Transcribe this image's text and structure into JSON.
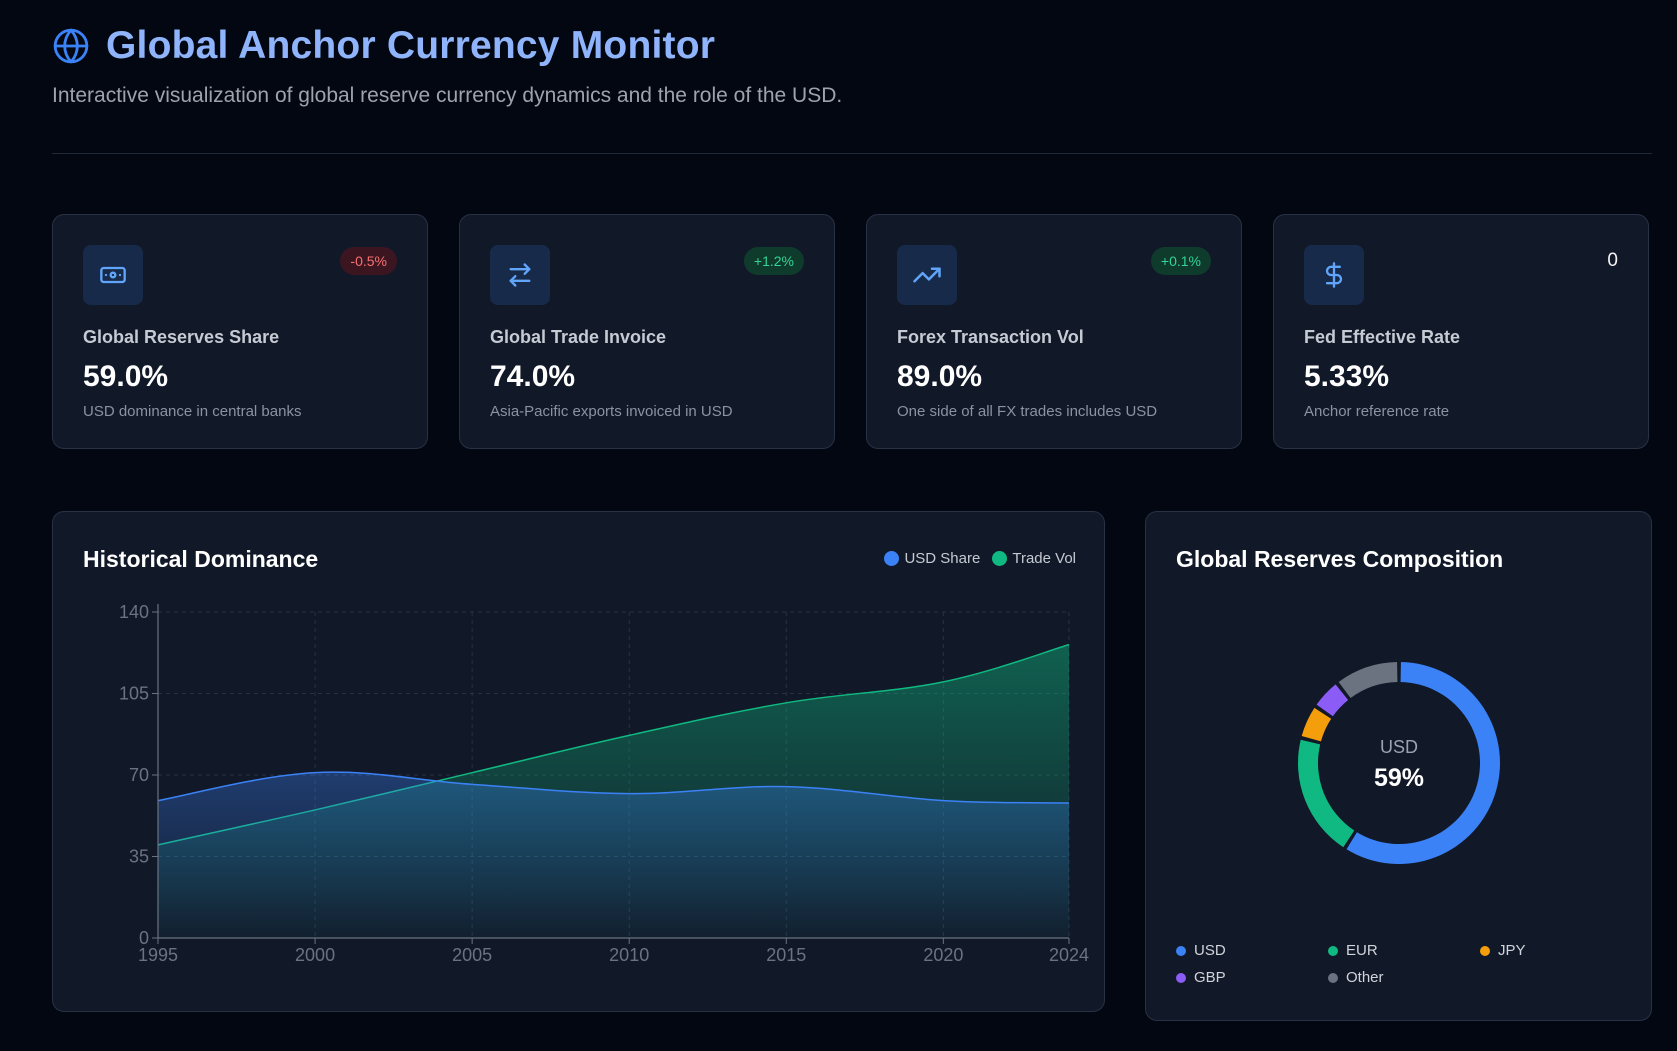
{
  "header": {
    "title": "Global Anchor Currency Monitor",
    "subtitle": "Interactive visualization of global reserve currency dynamics and the role of the USD.",
    "icon": "globe-icon"
  },
  "cards": [
    {
      "icon": "banknote-icon",
      "label": "Global Reserves Share",
      "value": "59.0%",
      "desc": "USD dominance in central banks",
      "badge": "-0.5%",
      "badge_type": "neg"
    },
    {
      "icon": "exchange-arrows-icon",
      "label": "Global Trade Invoice",
      "value": "74.0%",
      "desc": "Asia-Pacific exports invoiced in USD",
      "badge": "+1.2%",
      "badge_type": "pos"
    },
    {
      "icon": "trending-up-icon",
      "label": "Forex Transaction Vol",
      "value": "89.0%",
      "desc": "One side of all FX trades includes USD",
      "badge": "+0.1%",
      "badge_type": "pos"
    },
    {
      "icon": "dollar-sign-icon",
      "label": "Fed Effective Rate",
      "value": "5.33%",
      "desc": "Anchor reference rate",
      "badge": "0",
      "badge_type": "neutral"
    }
  ],
  "colors": {
    "usd": "#3b82f6",
    "trade": "#10b981",
    "eur": "#10b981",
    "jpy": "#f59e0b",
    "gbp": "#8b5cf6",
    "other": "#6b7280"
  },
  "chart_data": [
    {
      "type": "area",
      "title": "Historical Dominance",
      "x": [
        1995,
        2000,
        2005,
        2010,
        2015,
        2020,
        2024
      ],
      "series": [
        {
          "name": "USD Share",
          "values": [
            59,
            71,
            66,
            62,
            65,
            59,
            58
          ]
        },
        {
          "name": "Trade Vol",
          "values": [
            40,
            55,
            71,
            87,
            101,
            110,
            126
          ]
        }
      ],
      "xlabel": "",
      "ylabel": "",
      "xlim": [
        1995,
        2024
      ],
      "ylim": [
        0,
        140
      ],
      "yticks": [
        0,
        35,
        70,
        105,
        140
      ],
      "xticks": [
        1995,
        2000,
        2005,
        2010,
        2015,
        2020,
        2024
      ],
      "grid": true,
      "legend": "top-right"
    },
    {
      "type": "pie",
      "title": "Global Reserves Composition",
      "categories": [
        "USD",
        "EUR",
        "JPY",
        "GBP",
        "Other"
      ],
      "values": [
        59,
        20,
        5.5,
        5,
        10.5
      ],
      "center_label": "USD",
      "center_value": "59%",
      "legend": "bottom"
    }
  ]
}
